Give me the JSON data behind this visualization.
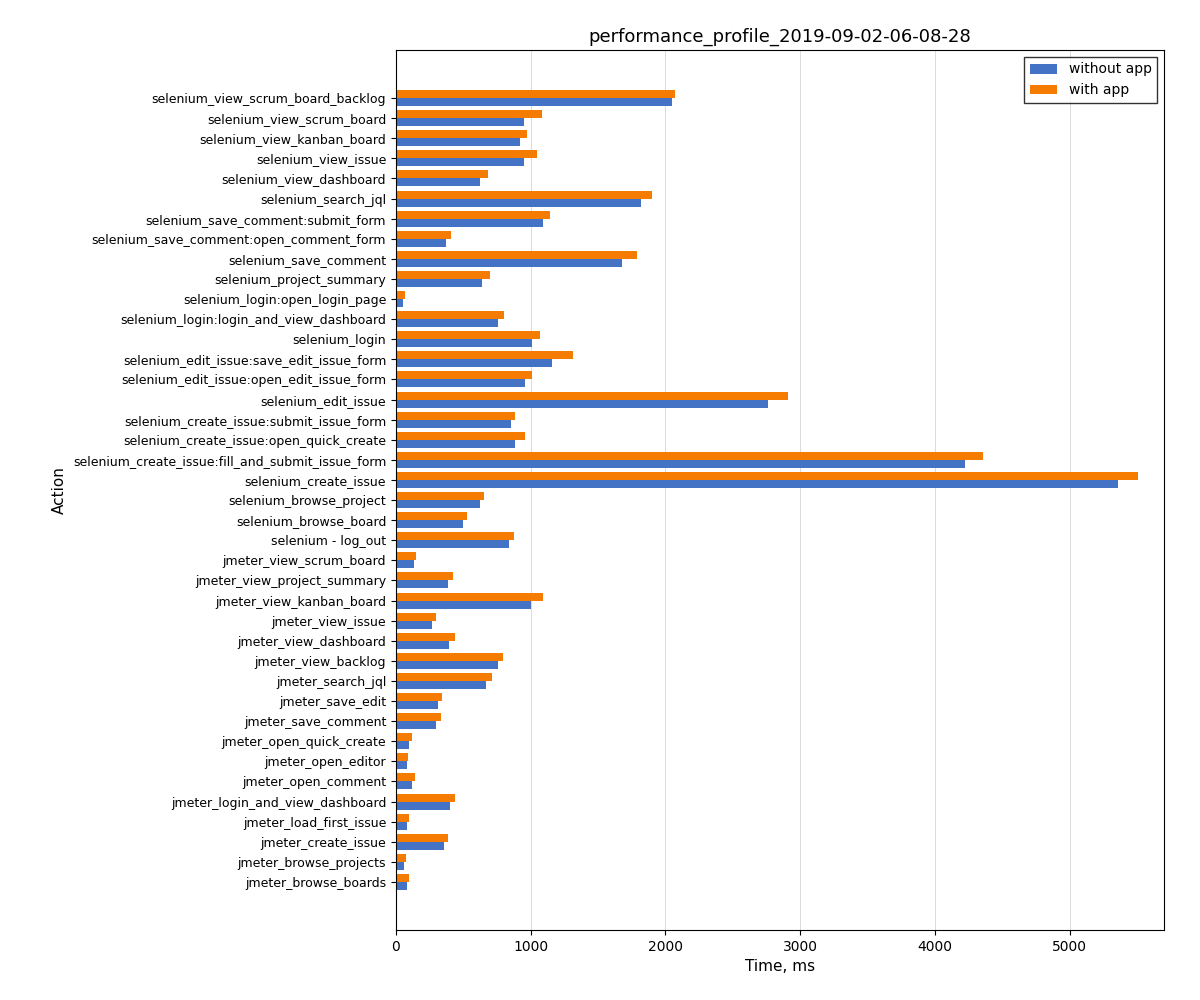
{
  "title": "performance_profile_2019-09-02-06-08-28",
  "xlabel": "Time, ms",
  "ylabel": "Action",
  "categories": [
    "selenium_view_scrum_board_backlog",
    "selenium_view_scrum_board",
    "selenium_view_kanban_board",
    "selenium_view_issue",
    "selenium_view_dashboard",
    "selenium_search_jql",
    "selenium_save_comment:submit_form",
    "selenium_save_comment:open_comment_form",
    "selenium_save_comment",
    "selenium_project_summary",
    "selenium_login:open_login_page",
    "selenium_login:login_and_view_dashboard",
    "selenium_login",
    "selenium_edit_issue:save_edit_issue_form",
    "selenium_edit_issue:open_edit_issue_form",
    "selenium_edit_issue",
    "selenium_create_issue:submit_issue_form",
    "selenium_create_issue:open_quick_create",
    "selenium_create_issue:fill_and_submit_issue_form",
    "selenium_create_issue",
    "selenium_browse_project",
    "selenium_browse_board",
    "selenium - log_out",
    "jmeter_view_scrum_board",
    "jmeter_view_project_summary",
    "jmeter_view_kanban_board",
    "jmeter_view_issue",
    "jmeter_view_dashboard",
    "jmeter_view_backlog",
    "jmeter_search_jql",
    "jmeter_save_edit",
    "jmeter_save_comment",
    "jmeter_open_quick_create",
    "jmeter_open_editor",
    "jmeter_open_comment",
    "jmeter_login_and_view_dashboard",
    "jmeter_load_first_issue",
    "jmeter_create_issue",
    "jmeter_browse_projects",
    "jmeter_browse_boards"
  ],
  "without_app": [
    2050,
    950,
    920,
    950,
    620,
    1820,
    1090,
    370,
    1680,
    640,
    55,
    760,
    1010,
    1160,
    960,
    2760,
    850,
    880,
    4220,
    5360,
    620,
    500,
    840,
    130,
    385,
    1000,
    270,
    395,
    755,
    670,
    310,
    300,
    100,
    80,
    120,
    400,
    85,
    355,
    60,
    80
  ],
  "with_app": [
    2070,
    1080,
    970,
    1050,
    680,
    1900,
    1140,
    405,
    1790,
    700,
    65,
    805,
    1070,
    1310,
    1010,
    2910,
    885,
    960,
    4360,
    5510,
    655,
    525,
    875,
    145,
    425,
    1090,
    295,
    435,
    795,
    715,
    338,
    332,
    118,
    92,
    143,
    435,
    97,
    385,
    72,
    93
  ],
  "color_without": "#4472c4",
  "color_with": "#f57c00",
  "bar_height": 0.4,
  "figsize": [
    12.0,
    10.0
  ],
  "dpi": 100,
  "xlim": [
    0,
    5700
  ],
  "xticks": [
    0,
    1000,
    2000,
    3000,
    4000,
    5000
  ],
  "label_fontsize": 9.0,
  "title_fontsize": 13,
  "axis_label_fontsize": 11
}
